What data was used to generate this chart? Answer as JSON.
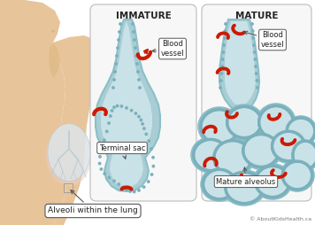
{
  "bg_color": "#ffffff",
  "body_skin_light": "#e8c49a",
  "body_skin_mid": "#ddb882",
  "body_skin_dark": "#c8a070",
  "lung_fill": "#dce8f0",
  "lung_stroke": "#b0c8d8",
  "bronchi_color": "#b8ccd8",
  "alveoli_outer": "#8bbfc8",
  "alveoli_mid": "#a8cdd4",
  "alveoli_lumen": "#c8e2e8",
  "alveoli_dot": "#7ab0bc",
  "blood_color": "#cc1a00",
  "panel_fill": "#f7f7f7",
  "panel_stroke": "#bbbbbb",
  "label_fill": "#ffffff",
  "label_stroke": "#555555",
  "text_dark": "#222222",
  "title_immature": "IMMATURE",
  "title_mature": "MATURE",
  "lbl_blood": "Blood\nvessel",
  "lbl_terminal": "Terminal sac",
  "lbl_mature_alv": "Mature alveolus",
  "lbl_lung": "Alveoli within the lung",
  "copyright": "© AboutKidsHealth.ca",
  "tf_title": 7.5,
  "tf_label": 6.0,
  "tf_copy": 4.5
}
